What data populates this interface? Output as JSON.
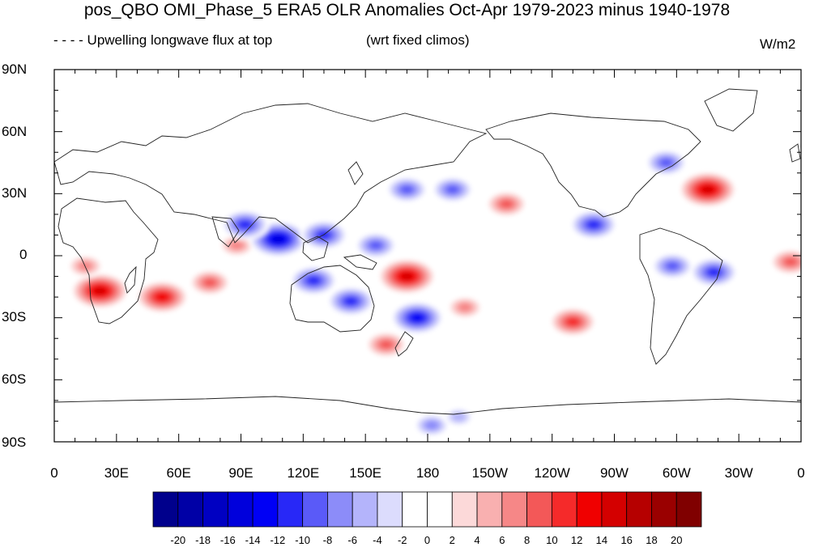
{
  "title": "pos_QBO OMI_Phase_5 ERA5 OLR Anomalies Oct-Apr 1979-2023 minus 1940-1978",
  "subtitle_left": "- - - - Upwelling longwave flux at top",
  "subtitle_mid": "(wrt fixed climos)",
  "units": "W/m2",
  "lat_labels": [
    "90N",
    "60N",
    "30N",
    "0",
    "30S",
    "60S",
    "90S"
  ],
  "lon_labels": [
    "0",
    "30E",
    "60E",
    "90E",
    "120E",
    "150E",
    "180",
    "150W",
    "120W",
    "90W",
    "60W",
    "30W",
    "0"
  ],
  "colorbar": {
    "labels": [
      "-20",
      "-18",
      "-16",
      "-14",
      "-12",
      "-10",
      "-8",
      "-6",
      "-4",
      "-2",
      "0",
      "2",
      "4",
      "6",
      "8",
      "10",
      "12",
      "14",
      "16",
      "18",
      "20"
    ],
    "colors": [
      "#00008c",
      "#0000a6",
      "#0000c2",
      "#0000dc",
      "#0000f5",
      "#2828f7",
      "#5a5af8",
      "#8c8cf9",
      "#b4b4fb",
      "#dcdcfd",
      "#ffffff",
      "#ffffff",
      "#fcd9d9",
      "#f9b0b0",
      "#f68787",
      "#f35858",
      "#f52a2a",
      "#f00000",
      "#d40000",
      "#b60000",
      "#9a0000",
      "#800000"
    ]
  },
  "chart_data": {
    "type": "heatmap",
    "title": "pos_QBO OMI_Phase_5 ERA5 OLR Anomalies Oct-Apr 1979-2023 minus 1940-1978",
    "units": "W/m2",
    "lon_range": [
      0,
      360
    ],
    "lat_range": [
      -90,
      90
    ],
    "projection": "cylindrical equidistant",
    "contour_levels": [
      -20,
      -18,
      -16,
      -14,
      -12,
      -10,
      -8,
      -6,
      -4,
      -2,
      0,
      2,
      4,
      6,
      8,
      10,
      12,
      14,
      16,
      18,
      20
    ],
    "anomaly_centers": [
      {
        "lon": 22,
        "lat": -17,
        "value": 16
      },
      {
        "lon": 52,
        "lat": -20,
        "value": 14
      },
      {
        "lon": 15,
        "lat": -5,
        "value": 8
      },
      {
        "lon": 75,
        "lat": -13,
        "value": 10
      },
      {
        "lon": 88,
        "lat": 5,
        "value": 8
      },
      {
        "lon": 108,
        "lat": 8,
        "value": -16
      },
      {
        "lon": 92,
        "lat": 15,
        "value": -12
      },
      {
        "lon": 130,
        "lat": 10,
        "value": -12
      },
      {
        "lon": 125,
        "lat": -12,
        "value": -12
      },
      {
        "lon": 143,
        "lat": -22,
        "value": -12
      },
      {
        "lon": 155,
        "lat": 5,
        "value": -10
      },
      {
        "lon": 170,
        "lat": -10,
        "value": 16
      },
      {
        "lon": 175,
        "lat": -30,
        "value": -14
      },
      {
        "lon": 160,
        "lat": -43,
        "value": 10
      },
      {
        "lon": 198,
        "lat": -25,
        "value": 8
      },
      {
        "lon": 250,
        "lat": -32,
        "value": 12
      },
      {
        "lon": 260,
        "lat": 15,
        "value": -12
      },
      {
        "lon": 218,
        "lat": 25,
        "value": 10
      },
      {
        "lon": 192,
        "lat": 32,
        "value": -10
      },
      {
        "lon": 170,
        "lat": 32,
        "value": -10
      },
      {
        "lon": 315,
        "lat": 32,
        "value": 16
      },
      {
        "lon": 295,
        "lat": 45,
        "value": -10
      },
      {
        "lon": 298,
        "lat": -5,
        "value": -10
      },
      {
        "lon": 318,
        "lat": -8,
        "value": -12
      },
      {
        "lon": 355,
        "lat": -3,
        "value": 10
      },
      {
        "lon": 182,
        "lat": -82,
        "value": -8
      },
      {
        "lon": 195,
        "lat": -78,
        "value": -6
      }
    ]
  }
}
